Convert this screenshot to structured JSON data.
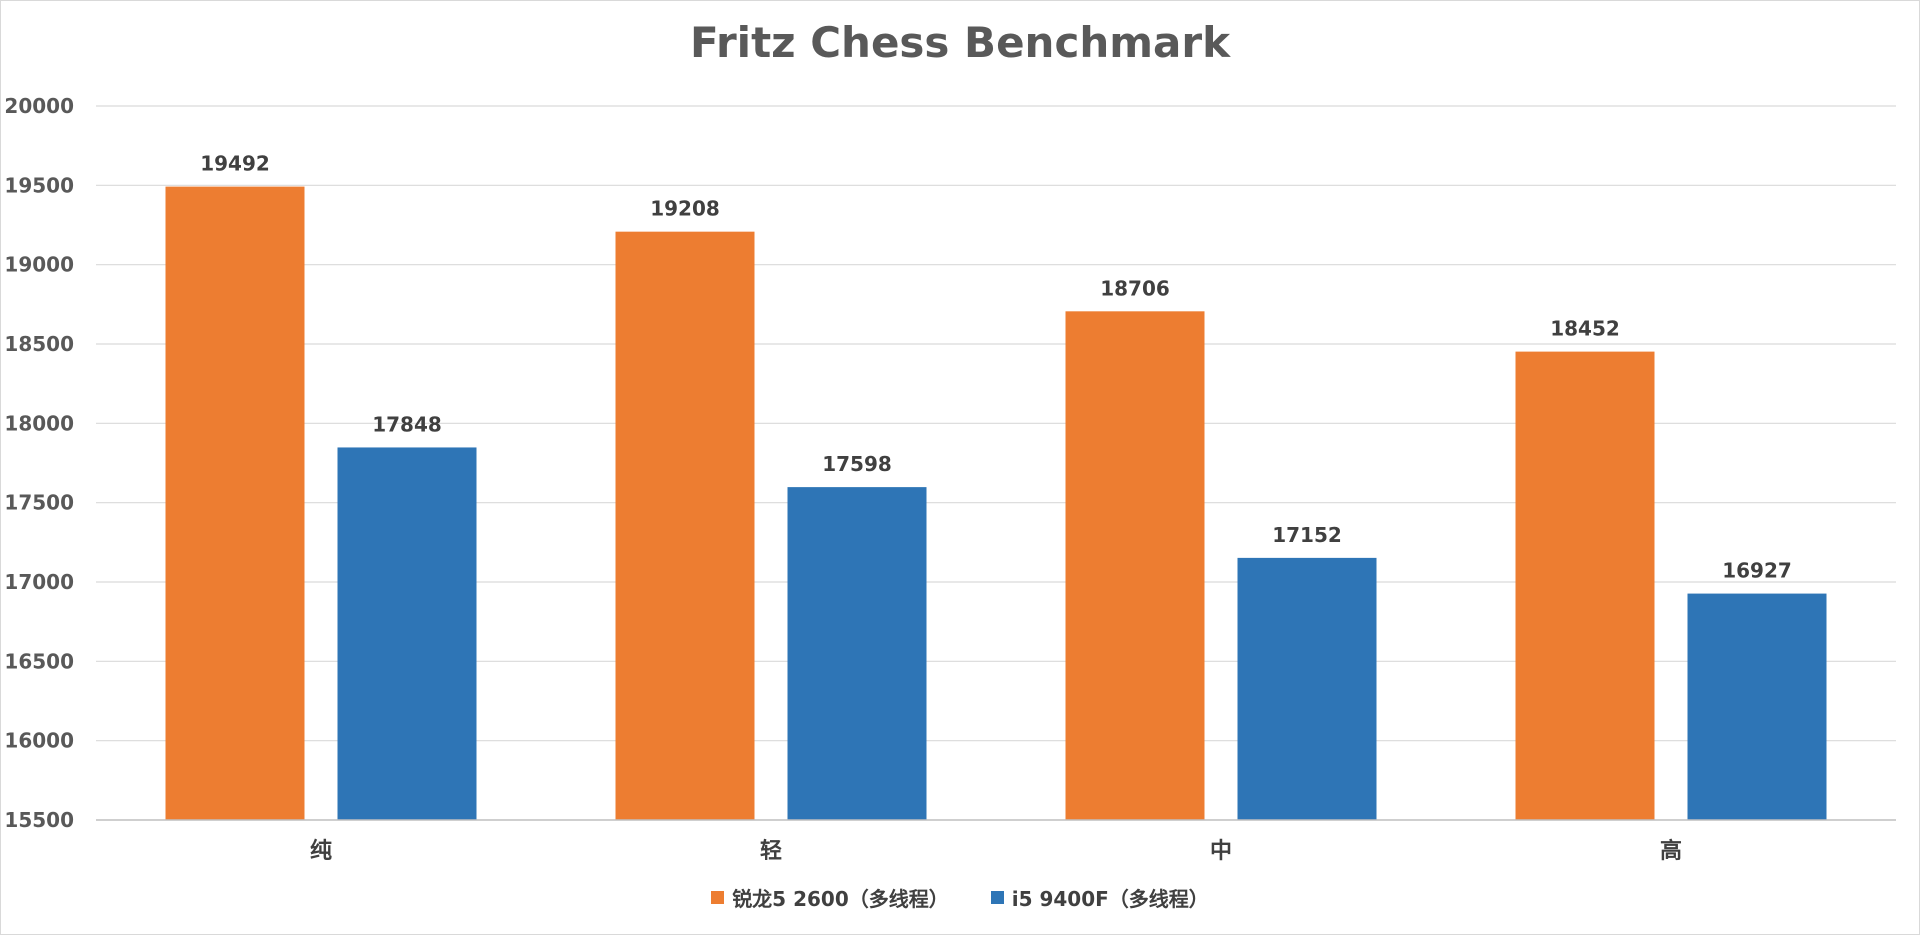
{
  "chart_data": {
    "type": "bar",
    "title": "Fritz Chess Benchmark",
    "xlabel": "",
    "ylabel": "",
    "categories": [
      "纯",
      "轻",
      "中",
      "高"
    ],
    "series": [
      {
        "name": "锐龙5 2600（多线程）",
        "color": "#ED7D31",
        "values": [
          19492,
          19208,
          18706,
          18452
        ]
      },
      {
        "name": "i5 9400F（多线程）",
        "color": "#2E75B6",
        "values": [
          17848,
          17598,
          17152,
          16927
        ]
      }
    ],
    "ylim": [
      15500,
      20000
    ],
    "yticks": [
      15500,
      16000,
      16500,
      17000,
      17500,
      18000,
      18500,
      19000,
      19500,
      20000
    ],
    "grid": true,
    "data_labels": true,
    "legend_position": "bottom"
  }
}
